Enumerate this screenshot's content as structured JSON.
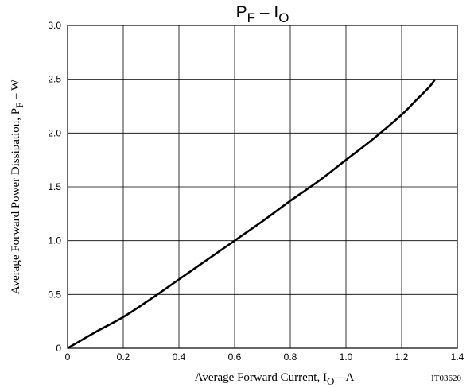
{
  "chart_data": {
    "type": "line",
    "title": {
      "main_a": "P",
      "sub_a": "F",
      "sep": " – ",
      "main_b": "I",
      "sub_b": "O"
    },
    "xlabel": {
      "prefix": "Average Forward Current, I",
      "sub": "O",
      "suffix": " – A"
    },
    "ylabel": {
      "prefix": "Average Forward Power Dissipation, P",
      "sub": "F",
      "suffix": " – W"
    },
    "figure_code": "IT03620",
    "xlim": [
      0,
      1.4
    ],
    "ylim": [
      0,
      3.0
    ],
    "x_ticks": [
      "0",
      "0.2",
      "0.4",
      "0.6",
      "0.8",
      "1.0",
      "1.2",
      "1.4"
    ],
    "y_ticks": [
      "0",
      "0.5",
      "1.0",
      "1.5",
      "2.0",
      "2.5",
      "3.0"
    ],
    "x_tick_values": [
      0,
      0.2,
      0.4,
      0.6,
      0.8,
      1.0,
      1.2,
      1.4
    ],
    "y_tick_values": [
      0,
      0.5,
      1.0,
      1.5,
      2.0,
      2.5,
      3.0
    ],
    "grid": true,
    "series": [
      {
        "x": [
          0,
          0.1,
          0.2,
          0.3,
          0.4,
          0.5,
          0.6,
          0.7,
          0.8,
          0.9,
          1.0,
          1.1,
          1.2,
          1.25,
          1.3,
          1.32
        ],
        "y": [
          0,
          0.15,
          0.29,
          0.46,
          0.64,
          0.82,
          1.0,
          1.18,
          1.37,
          1.55,
          1.75,
          1.95,
          2.17,
          2.3,
          2.43,
          2.5
        ]
      }
    ]
  }
}
